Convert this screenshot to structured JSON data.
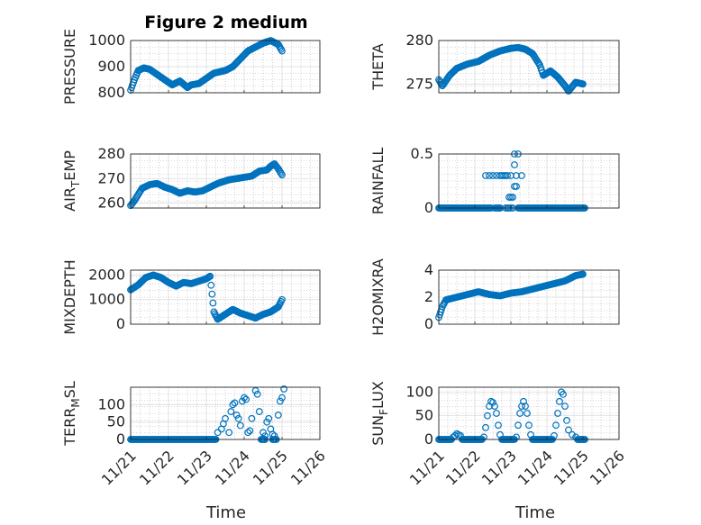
{
  "title": "Figure 2 medium",
  "colors": {
    "marker": "#0072BD",
    "axis": "#262626",
    "grid": "#b0b0b0"
  },
  "x_tick_labels": [
    "11/21",
    "11/22",
    "11/23",
    "11/24",
    "11/25",
    "11/26"
  ],
  "x_label": "Time",
  "chart_data": [
    {
      "type": "scatter",
      "title": "Figure 2 medium",
      "ylabel": "PRESSURE",
      "xlim": [
        0,
        5
      ],
      "ylim": [
        800,
        1000
      ],
      "yticks": [
        "800",
        "900",
        "1000"
      ],
      "grid": true,
      "x_labels_shown": false,
      "anchors": [
        [
          0.0,
          810
        ],
        [
          0.1,
          850
        ],
        [
          0.2,
          885
        ],
        [
          0.35,
          895
        ],
        [
          0.5,
          890
        ],
        [
          0.7,
          870
        ],
        [
          0.9,
          850
        ],
        [
          1.1,
          830
        ],
        [
          1.3,
          845
        ],
        [
          1.5,
          820
        ],
        [
          1.6,
          830
        ],
        [
          1.8,
          835
        ],
        [
          2.0,
          855
        ],
        [
          2.2,
          875
        ],
        [
          2.5,
          885
        ],
        [
          2.7,
          900
        ],
        [
          2.9,
          930
        ],
        [
          3.1,
          960
        ],
        [
          3.3,
          975
        ],
        [
          3.5,
          990
        ],
        [
          3.7,
          1000
        ],
        [
          3.9,
          985
        ],
        [
          4.0,
          960
        ]
      ]
    },
    {
      "type": "scatter",
      "ylabel": "THETA",
      "xlim": [
        0,
        5
      ],
      "ylim": [
        274,
        280
      ],
      "yticks": [
        "275",
        "280"
      ],
      "grid": true,
      "x_labels_shown": false,
      "anchors": [
        [
          0.0,
          275.5
        ],
        [
          0.1,
          274.8
        ],
        [
          0.3,
          276
        ],
        [
          0.5,
          276.8
        ],
        [
          0.8,
          277.3
        ],
        [
          1.1,
          277.6
        ],
        [
          1.4,
          278.3
        ],
        [
          1.7,
          278.8
        ],
        [
          2.0,
          279.1
        ],
        [
          2.2,
          279.2
        ],
        [
          2.4,
          279
        ],
        [
          2.6,
          278.5
        ],
        [
          2.8,
          277.2
        ],
        [
          2.9,
          276
        ],
        [
          3.1,
          276.5
        ],
        [
          3.3,
          275.8
        ],
        [
          3.5,
          274.8
        ],
        [
          3.6,
          274.2
        ],
        [
          3.8,
          275.2
        ],
        [
          4.0,
          275.0
        ]
      ]
    },
    {
      "type": "scatter",
      "ylabel": "AIR_TEMP",
      "xlim": [
        0,
        5
      ],
      "ylim": [
        258,
        280
      ],
      "yticks": [
        "260",
        "270",
        "280"
      ],
      "grid": true,
      "x_labels_shown": false,
      "anchors": [
        [
          0.0,
          259
        ],
        [
          0.1,
          261
        ],
        [
          0.3,
          266
        ],
        [
          0.5,
          267.5
        ],
        [
          0.7,
          268
        ],
        [
          0.9,
          266.5
        ],
        [
          1.1,
          265.5
        ],
        [
          1.3,
          264
        ],
        [
          1.5,
          265
        ],
        [
          1.7,
          264.5
        ],
        [
          1.9,
          265
        ],
        [
          2.1,
          266.5
        ],
        [
          2.3,
          268
        ],
        [
          2.6,
          269.5
        ],
        [
          2.8,
          270
        ],
        [
          3.0,
          270.5
        ],
        [
          3.2,
          271
        ],
        [
          3.4,
          273
        ],
        [
          3.6,
          273.5
        ],
        [
          3.7,
          275
        ],
        [
          3.8,
          276
        ],
        [
          3.9,
          274
        ],
        [
          4.0,
          271.5
        ]
      ]
    },
    {
      "type": "scatter",
      "ylabel": "RAINFALL",
      "xlim": [
        0,
        5
      ],
      "ylim": [
        0,
        0.5
      ],
      "yticks": [
        "0",
        "0.5"
      ],
      "grid": true,
      "x_labels_shown": false,
      "points": [
        [
          1.3,
          0.3
        ],
        [
          1.4,
          0.3
        ],
        [
          1.5,
          0.3
        ],
        [
          1.6,
          0.3
        ],
        [
          1.7,
          0.3
        ],
        [
          1.75,
          0.3
        ],
        [
          1.8,
          0.3
        ],
        [
          1.85,
          0.3
        ],
        [
          1.9,
          0.3
        ],
        [
          2.0,
          0.3
        ],
        [
          2.15,
          0.3
        ],
        [
          1.95,
          0.1
        ],
        [
          2.0,
          0.1
        ],
        [
          2.05,
          0.1
        ],
        [
          2.1,
          0.2
        ],
        [
          2.15,
          0.2
        ],
        [
          2.1,
          0.5
        ],
        [
          2.2,
          0.5
        ],
        [
          2.1,
          0.4
        ],
        [
          2.3,
          0.3
        ],
        [
          1.7,
          0
        ],
        [
          1.85,
          0
        ],
        [
          2.0,
          0
        ],
        [
          2.05,
          0
        ]
      ],
      "baseline": {
        "value": 0,
        "x_ranges": [
          [
            0.0,
            1.45
          ],
          [
            1.55,
            1.7
          ],
          [
            1.9,
            1.95
          ],
          [
            2.2,
            4.05
          ]
        ]
      }
    },
    {
      "type": "scatter",
      "ylabel": "MIXDEPTH",
      "xlim": [
        0,
        5
      ],
      "ylim": [
        0,
        2200
      ],
      "yticks": [
        "0",
        "1000",
        "2000"
      ],
      "grid": true,
      "x_labels_shown": false,
      "anchors": [
        [
          0.0,
          1400
        ],
        [
          0.2,
          1600
        ],
        [
          0.4,
          1900
        ],
        [
          0.6,
          2000
        ],
        [
          0.8,
          1900
        ],
        [
          1.0,
          1700
        ],
        [
          1.2,
          1550
        ],
        [
          1.4,
          1700
        ],
        [
          1.6,
          1650
        ],
        [
          1.8,
          1750
        ],
        [
          2.0,
          1850
        ],
        [
          2.1,
          1950
        ],
        [
          2.2,
          500
        ],
        [
          2.3,
          200
        ],
        [
          2.5,
          400
        ],
        [
          2.7,
          600
        ],
        [
          2.9,
          450
        ],
        [
          3.1,
          350
        ],
        [
          3.3,
          250
        ],
        [
          3.5,
          400
        ],
        [
          3.7,
          500
        ],
        [
          3.9,
          700
        ],
        [
          4.0,
          1000
        ]
      ]
    },
    {
      "type": "scatter",
      "ylabel": "H2OMIXRA",
      "xlim": [
        0,
        5
      ],
      "ylim": [
        0,
        4
      ],
      "yticks": [
        "0",
        "2",
        "4"
      ],
      "grid": true,
      "x_labels_shown": false,
      "anchors": [
        [
          0.0,
          0.5
        ],
        [
          0.1,
          1.3
        ],
        [
          0.2,
          1.8
        ],
        [
          0.5,
          2.0
        ],
        [
          0.8,
          2.2
        ],
        [
          1.1,
          2.4
        ],
        [
          1.4,
          2.2
        ],
        [
          1.7,
          2.1
        ],
        [
          2.0,
          2.3
        ],
        [
          2.3,
          2.4
        ],
        [
          2.6,
          2.6
        ],
        [
          2.9,
          2.8
        ],
        [
          3.2,
          3.0
        ],
        [
          3.5,
          3.2
        ],
        [
          3.8,
          3.6
        ],
        [
          4.0,
          3.7
        ]
      ]
    },
    {
      "type": "scatter",
      "ylabel": "TERR_MSL",
      "xlim": [
        0,
        5
      ],
      "ylim": [
        0,
        150
      ],
      "yticks": [
        "0",
        "50",
        "100"
      ],
      "grid": true,
      "x_labels_shown": true,
      "points": [
        [
          2.3,
          20
        ],
        [
          2.4,
          30
        ],
        [
          2.45,
          45
        ],
        [
          2.5,
          60
        ],
        [
          2.6,
          20
        ],
        [
          2.65,
          80
        ],
        [
          2.7,
          100
        ],
        [
          2.75,
          105
        ],
        [
          2.8,
          70
        ],
        [
          2.85,
          60
        ],
        [
          2.9,
          40
        ],
        [
          2.95,
          110
        ],
        [
          3.0,
          120
        ],
        [
          3.05,
          115
        ],
        [
          3.1,
          20
        ],
        [
          3.15,
          25
        ],
        [
          3.2,
          60
        ],
        [
          3.3,
          140
        ],
        [
          3.35,
          130
        ],
        [
          3.4,
          80
        ],
        [
          3.5,
          20
        ],
        [
          3.55,
          10
        ],
        [
          3.6,
          50
        ],
        [
          3.65,
          60
        ],
        [
          3.7,
          30
        ],
        [
          3.75,
          15
        ],
        [
          3.8,
          10
        ],
        [
          3.9,
          70
        ],
        [
          3.95,
          110
        ],
        [
          4.0,
          120
        ],
        [
          4.05,
          145
        ]
      ],
      "baseline": {
        "value": 0,
        "x_ranges": [
          [
            0.0,
            2.25
          ],
          [
            3.45,
            3.55
          ],
          [
            3.75,
            3.85
          ]
        ]
      }
    },
    {
      "type": "scatter",
      "ylabel": "SUN_FLUX",
      "xlim": [
        0,
        5
      ],
      "ylim": [
        0,
        110
      ],
      "yticks": [
        "0",
        "50",
        "100"
      ],
      "grid": true,
      "x_labels_shown": true,
      "points": [
        [
          0.4,
          5
        ],
        [
          0.45,
          8
        ],
        [
          0.5,
          12
        ],
        [
          0.55,
          10
        ],
        [
          0.6,
          8
        ],
        [
          1.25,
          5
        ],
        [
          1.3,
          25
        ],
        [
          1.35,
          50
        ],
        [
          1.4,
          70
        ],
        [
          1.45,
          80
        ],
        [
          1.5,
          78
        ],
        [
          1.55,
          70
        ],
        [
          1.6,
          55
        ],
        [
          1.65,
          30
        ],
        [
          1.7,
          10
        ],
        [
          2.15,
          5
        ],
        [
          2.2,
          30
        ],
        [
          2.25,
          55
        ],
        [
          2.3,
          70
        ],
        [
          2.35,
          80
        ],
        [
          2.4,
          70
        ],
        [
          2.45,
          55
        ],
        [
          2.5,
          30
        ],
        [
          2.55,
          10
        ],
        [
          3.2,
          8
        ],
        [
          3.25,
          30
        ],
        [
          3.3,
          55
        ],
        [
          3.35,
          80
        ],
        [
          3.4,
          100
        ],
        [
          3.45,
          95
        ],
        [
          3.5,
          70
        ],
        [
          3.55,
          40
        ],
        [
          3.6,
          20
        ],
        [
          3.7,
          10
        ],
        [
          3.8,
          5
        ]
      ],
      "baseline": {
        "value": 0,
        "x_ranges": [
          [
            0.0,
            0.35
          ],
          [
            0.65,
            1.2
          ],
          [
            1.75,
            2.1
          ],
          [
            2.6,
            3.15
          ],
          [
            3.85,
            4.05
          ]
        ]
      }
    }
  ]
}
